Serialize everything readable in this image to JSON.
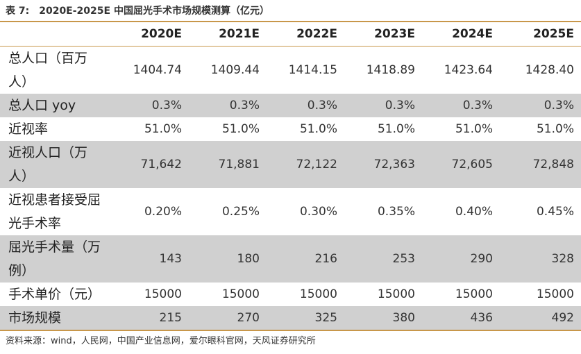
{
  "caption": {
    "label": "表 7:",
    "title": "2020E-2025E 中国屈光手术市场规模测算（亿元）"
  },
  "table": {
    "headers": [
      "2020E",
      "2021E",
      "2022E",
      "2023E",
      "2024E",
      "2025E"
    ],
    "rows": [
      {
        "label": "总人口（百万人）",
        "values": [
          "1404.74",
          "1409.44",
          "1414.15",
          "1418.89",
          "1423.64",
          "1428.40"
        ]
      },
      {
        "label": "总人口 yoy",
        "values": [
          "0.3%",
          "0.3%",
          "0.3%",
          "0.3%",
          "0.3%",
          "0.3%"
        ]
      },
      {
        "label": "近视率",
        "values": [
          "51.0%",
          "51.0%",
          "51.0%",
          "51.0%",
          "51.0%",
          "51.0%"
        ]
      },
      {
        "label": "近视人口（万人）",
        "values": [
          "71,642",
          "71,881",
          "72,122",
          "72,363",
          "72,605",
          "72,848"
        ]
      },
      {
        "label": "近视患者接受屈光手术率",
        "values": [
          "0.20%",
          "0.25%",
          "0.30%",
          "0.35%",
          "0.40%",
          "0.45%"
        ]
      },
      {
        "label": "屈光手术量（万例）",
        "values": [
          "143",
          "180",
          "216",
          "253",
          "290",
          "328"
        ]
      },
      {
        "label": "手术单价（元）",
        "values": [
          "15000",
          "15000",
          "15000",
          "15000",
          "15000",
          "15000"
        ]
      },
      {
        "label": "市场规模",
        "values": [
          "215",
          "270",
          "325",
          "380",
          "436",
          "492"
        ]
      }
    ]
  },
  "source": "资料来源：wind，人民网，中国产业信息网，爱尔眼科官网，天风证券研究所"
}
